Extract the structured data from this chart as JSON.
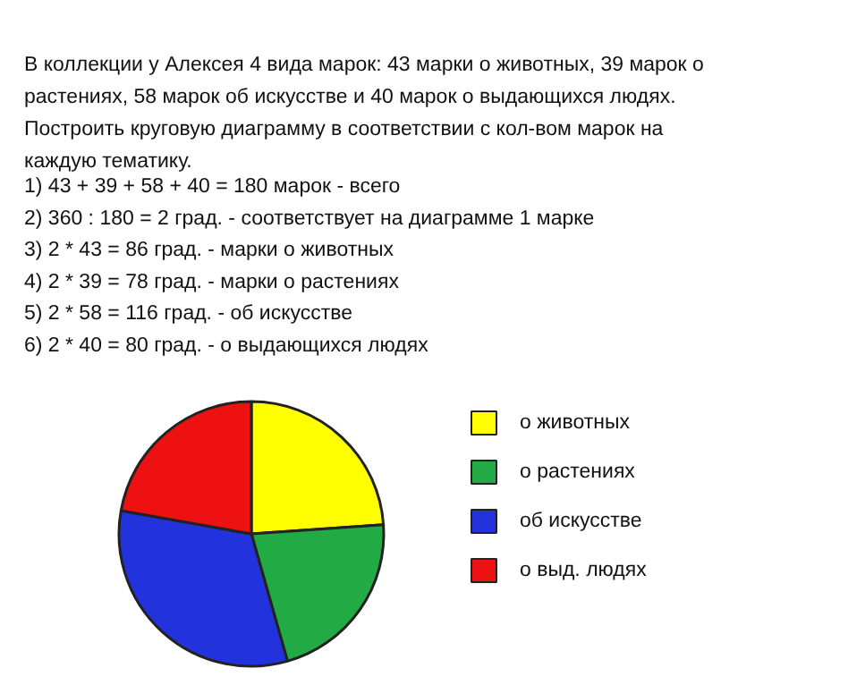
{
  "chart_data": {
    "type": "pie",
    "title": "В коллекции у Алексея 4 вида марок: 43 марки о животных, 39 марок о\nрастениях, 58 марок об искусстве и 40 марок о выдающихся людях.\nПостроить круговую диаграмму в соответствии с кол-вом марок на\nкаждую тематику.",
    "annotations": [
      "1) 43 + 39 + 58 + 40 = 180 марок - всего",
      "2) 360 : 180 = 2 град. - соответствует на диаграмме 1 марке",
      "3) 2 * 43 = 86 град. - марки о животных",
      "4) 2 * 39 = 78 град. - марки о растениях",
      "5) 2 * 58 = 116 град. - об искусстве",
      "6) 2 * 40 = 80 град. - о выдающихся людях"
    ],
    "categories": [
      "о животных",
      "о растениях",
      "об искусстве",
      "о выд. людях"
    ],
    "values": [
      23.9,
      21.7,
      32.2,
      22.2
    ],
    "colors": [
      "#ffff00",
      "#22aa44",
      "#2233dd",
      "#ee1111"
    ],
    "legend": "right"
  }
}
